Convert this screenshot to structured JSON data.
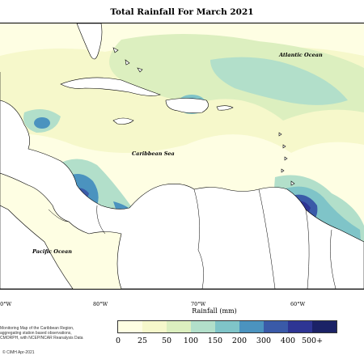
{
  "title": "Total Rainfall For March 2021",
  "map_labels": {
    "atlantic": "Atlantic Ocean",
    "caribbean": "Caribbean Sea",
    "pacific": "Pacific Ocean"
  },
  "longitude_ticks": [
    "90°W",
    "80°W",
    "70°W",
    "60°W"
  ],
  "legend": {
    "title": "Rainfall (mm)",
    "labels": [
      "0",
      "25",
      "50",
      "100",
      "150",
      "200",
      "300",
      "400",
      "500+"
    ],
    "colors": [
      "#fefee3",
      "#f6f8cb",
      "#dcefbf",
      "#b2dfca",
      "#7fc4c8",
      "#4b93bf",
      "#3a5aa8",
      "#2e3594",
      "#1b2266"
    ]
  },
  "notes": [
    "Monitoring Map of the Caribbean Region,",
    "aggregating station based observations,",
    "CMORPH, with NCEP/NCAR Reanalysis Data"
  ],
  "credit": "© CIMH Apr-2021"
}
